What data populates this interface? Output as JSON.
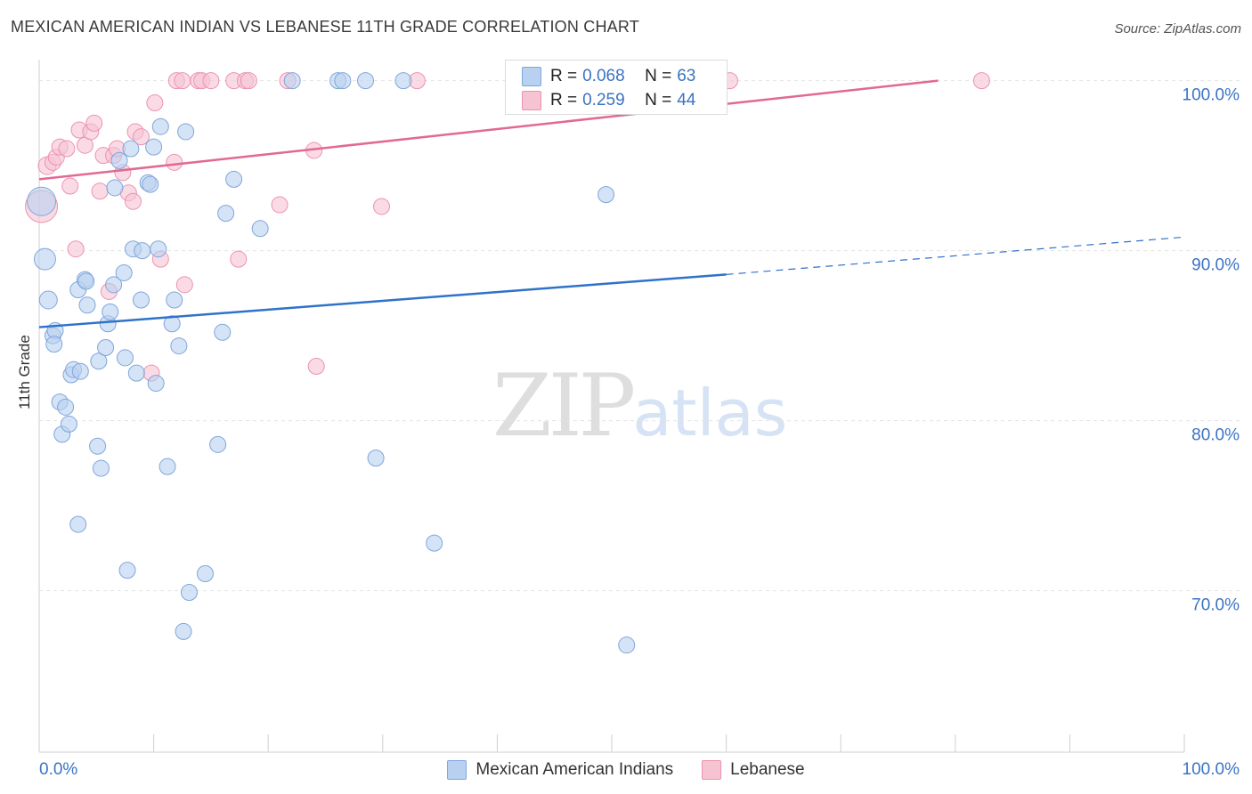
{
  "header": {
    "title": "MEXICAN AMERICAN INDIAN VS LEBANESE 11TH GRADE CORRELATION CHART",
    "source": "Source: ZipAtlas.com"
  },
  "watermark": {
    "zip": "ZIP",
    "atlas": "atlas"
  },
  "legend_stats": {
    "series1": {
      "r_label": "R =",
      "r_value": "0.068",
      "n_label": "N =",
      "n_value": "63"
    },
    "series2": {
      "r_label": "R =",
      "r_value": "0.259",
      "n_label": "N =",
      "n_value": "44"
    }
  },
  "colors": {
    "blue_fill": "#b9d1f0",
    "blue_stroke": "#7fa6db",
    "blue_line": "#2f72c9",
    "pink_fill": "#f6c3d3",
    "pink_stroke": "#eb93ae",
    "pink_line": "#e2698f",
    "tick_label": "#3b73c4",
    "grid": "#e3e3e3"
  },
  "chart_data": {
    "type": "scatter",
    "title": "MEXICAN AMERICAN INDIAN VS LEBANESE 11TH GRADE CORRELATION CHART",
    "xlabel": "",
    "ylabel": "11th Grade",
    "xlim": [
      0,
      100
    ],
    "ylim": [
      60.5,
      101.5
    ],
    "x_tick_labels": [
      "0.0%",
      "100.0%"
    ],
    "y_ticks": [
      70,
      80,
      90,
      100
    ],
    "y_tick_labels": [
      "70.0%",
      "80.0%",
      "90.0%",
      "100.0%"
    ],
    "grid": true,
    "legend": "bottom-center",
    "series": [
      {
        "name": "Mexican American Indians",
        "color": "blue",
        "trend": {
          "x0": 0,
          "y0": 85.5,
          "x1": 60,
          "y1": 88.6,
          "dash_to_x": 100,
          "dash_to_y": 90.8
        },
        "points": [
          [
            0.2,
            92.9,
            16
          ],
          [
            0.5,
            89.5,
            12
          ],
          [
            0.8,
            87.1,
            10
          ],
          [
            1.2,
            85.0,
            9
          ],
          [
            1.4,
            85.3,
            9
          ],
          [
            1.3,
            84.5,
            9
          ],
          [
            1.8,
            81.1,
            9
          ],
          [
            2.3,
            80.8,
            9
          ],
          [
            2.0,
            79.2,
            9
          ],
          [
            2.6,
            79.8,
            9
          ],
          [
            2.8,
            82.7,
            9
          ],
          [
            3.0,
            83.0,
            9
          ],
          [
            3.6,
            82.9,
            9
          ],
          [
            3.4,
            87.7,
            9
          ],
          [
            4.2,
            86.8,
            9
          ],
          [
            4.0,
            88.3,
            9
          ],
          [
            4.1,
            88.2,
            9
          ],
          [
            5.1,
            78.5,
            9
          ],
          [
            5.2,
            83.5,
            9
          ],
          [
            5.4,
            77.2,
            9
          ],
          [
            5.8,
            84.3,
            9
          ],
          [
            6.0,
            85.7,
            9
          ],
          [
            6.2,
            86.4,
            9
          ],
          [
            6.5,
            88.0,
            9
          ],
          [
            6.6,
            93.7,
            9
          ],
          [
            7.0,
            95.3,
            9
          ],
          [
            7.4,
            88.7,
            9
          ],
          [
            7.5,
            83.7,
            9
          ],
          [
            8.0,
            96.0,
            9
          ],
          [
            8.2,
            90.1,
            9
          ],
          [
            8.5,
            82.8,
            9
          ],
          [
            8.9,
            87.1,
            9
          ],
          [
            9.0,
            90.0,
            9
          ],
          [
            9.5,
            94.0,
            9
          ],
          [
            9.7,
            93.9,
            9
          ],
          [
            10.0,
            96.1,
            9
          ],
          [
            10.2,
            82.2,
            9
          ],
          [
            10.4,
            90.1,
            9
          ],
          [
            10.6,
            97.3,
            9
          ],
          [
            11.2,
            77.3,
            9
          ],
          [
            11.6,
            85.7,
            9
          ],
          [
            11.8,
            87.1,
            9
          ],
          [
            12.2,
            84.4,
            9
          ],
          [
            12.6,
            67.6,
            9
          ],
          [
            12.8,
            97.0,
            9
          ],
          [
            13.1,
            69.9,
            9
          ],
          [
            14.5,
            71.0,
            9
          ],
          [
            15.6,
            78.6,
            9
          ],
          [
            16.0,
            85.2,
            9
          ],
          [
            16.3,
            92.2,
            9
          ],
          [
            17.0,
            94.2,
            9
          ],
          [
            19.3,
            91.3,
            9
          ],
          [
            3.4,
            73.9,
            9
          ],
          [
            7.7,
            71.2,
            9
          ],
          [
            22.1,
            100.0,
            9
          ],
          [
            26.1,
            100.0,
            9
          ],
          [
            26.5,
            100.0,
            9
          ],
          [
            28.5,
            100.0,
            9
          ],
          [
            31.8,
            100.0,
            9
          ],
          [
            29.4,
            77.8,
            9
          ],
          [
            34.5,
            72.8,
            9
          ],
          [
            49.5,
            93.3,
            9
          ],
          [
            51.3,
            66.8,
            9
          ]
        ]
      },
      {
        "name": "Lebanese",
        "color": "pink",
        "trend": {
          "x0": 0,
          "y0": 94.2,
          "x1": 78.5,
          "y1": 100.0
        },
        "points": [
          [
            0.2,
            92.6,
            18
          ],
          [
            0.7,
            95.0,
            10
          ],
          [
            1.2,
            95.2,
            9
          ],
          [
            1.5,
            95.5,
            9
          ],
          [
            1.8,
            96.1,
            9
          ],
          [
            2.4,
            96.0,
            9
          ],
          [
            2.7,
            93.8,
            9
          ],
          [
            3.2,
            90.1,
            9
          ],
          [
            3.5,
            97.1,
            9
          ],
          [
            4.0,
            96.2,
            9
          ],
          [
            4.5,
            97.0,
            9
          ],
          [
            4.8,
            97.5,
            9
          ],
          [
            5.3,
            93.5,
            9
          ],
          [
            5.6,
            95.6,
            9
          ],
          [
            6.1,
            87.6,
            9
          ],
          [
            6.5,
            95.6,
            9
          ],
          [
            6.8,
            96.0,
            9
          ],
          [
            7.3,
            94.6,
            9
          ],
          [
            7.8,
            93.4,
            9
          ],
          [
            8.2,
            92.9,
            9
          ],
          [
            8.4,
            97.0,
            9
          ],
          [
            8.9,
            96.7,
            9
          ],
          [
            9.8,
            82.8,
            9
          ],
          [
            10.1,
            98.7,
            9
          ],
          [
            10.6,
            89.5,
            9
          ],
          [
            11.8,
            95.2,
            9
          ],
          [
            12.0,
            100.0,
            9
          ],
          [
            12.5,
            100.0,
            9
          ],
          [
            12.7,
            88.0,
            9
          ],
          [
            13.9,
            100.0,
            9
          ],
          [
            14.2,
            100.0,
            9
          ],
          [
            15.0,
            100.0,
            9
          ],
          [
            17.0,
            100.0,
            9
          ],
          [
            17.4,
            89.5,
            9
          ],
          [
            18.0,
            100.0,
            9
          ],
          [
            18.3,
            100.0,
            9
          ],
          [
            21.0,
            92.7,
            9
          ],
          [
            21.7,
            100.0,
            9
          ],
          [
            24.0,
            95.9,
            9
          ],
          [
            24.2,
            83.2,
            9
          ],
          [
            29.9,
            92.6,
            9
          ],
          [
            33.0,
            100.0,
            9
          ],
          [
            60.3,
            100.0,
            9
          ],
          [
            82.3,
            100.0,
            9
          ]
        ]
      }
    ]
  }
}
